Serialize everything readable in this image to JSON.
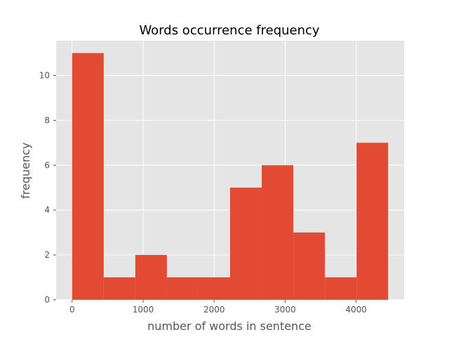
{
  "chart_data": {
    "type": "bar",
    "title": "Words occurrence frequency",
    "xlabel": "number of words in sentence",
    "ylabel": "frequency",
    "bin_edges": [
      0,
      445,
      890,
      1335,
      1780,
      2225,
      2670,
      3115,
      3560,
      4005,
      4450
    ],
    "values": [
      11,
      1,
      2,
      1,
      1,
      5,
      6,
      3,
      1,
      7
    ],
    "xlim": [
      -225,
      4675
    ],
    "ylim": [
      0,
      11.55
    ],
    "xticks": [
      0,
      1000,
      2000,
      3000,
      4000
    ],
    "yticks": [
      0,
      2,
      4,
      6,
      8,
      10
    ],
    "grid": true,
    "colors": {
      "bar": "#E24A33",
      "plot_background": "#E5E5E5",
      "grid": "#FFFFFF"
    }
  }
}
